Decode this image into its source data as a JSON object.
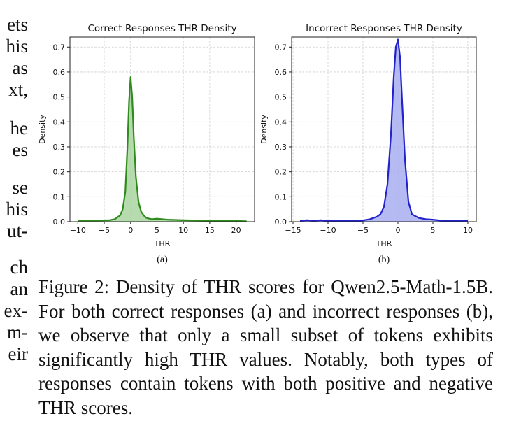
{
  "left_column_fragments": [
    "ets",
    "his",
    "as",
    "xt,",
    "he",
    "es",
    "se",
    "his",
    "ut-",
    "ch",
    "an",
    "ex-",
    "m-",
    "eir"
  ],
  "caption": "Figure 2: Density of THR scores for Qwen2.5-Math-1.5B. For both correct responses (a) and incorrect responses (b), we observe that only a small subset of tokens exhibits significantly high THR values. Notably, both types of responses contain tokens with both positive and negative THR scores.",
  "chart_data": [
    {
      "type": "area",
      "title": "Correct Responses THR Density",
      "xlabel": "THR",
      "ylabel": "Density",
      "sublabel": "(a)",
      "color": "#2e8b1c",
      "fill": "#a8d5a0",
      "xlim": [
        -11.5,
        23.5
      ],
      "ylim": [
        0,
        0.74
      ],
      "xticks": [
        -10,
        -5,
        0,
        5,
        10,
        15,
        20
      ],
      "yticks": [
        0.0,
        0.1,
        0.2,
        0.3,
        0.4,
        0.5,
        0.6,
        0.7
      ],
      "grid": true,
      "x": [
        -10,
        -6,
        -4,
        -3,
        -2,
        -1.5,
        -1,
        -0.6,
        -0.3,
        0,
        0.3,
        0.6,
        1,
        1.5,
        2,
        2.5,
        3,
        4,
        5,
        6,
        7,
        10,
        15,
        20,
        22
      ],
      "y": [
        0.005,
        0.005,
        0.006,
        0.01,
        0.025,
        0.05,
        0.12,
        0.3,
        0.48,
        0.58,
        0.5,
        0.34,
        0.18,
        0.08,
        0.04,
        0.025,
        0.015,
        0.01,
        0.012,
        0.01,
        0.008,
        0.006,
        0.004,
        0.003,
        0.002
      ]
    },
    {
      "type": "area",
      "title": "Incorrect Responses THR Density",
      "xlabel": "THR",
      "ylabel": "Density",
      "sublabel": "(b)",
      "color": "#2222cc",
      "fill": "#a8aef0",
      "xlim": [
        -15.2,
        11.2
      ],
      "ylim": [
        0,
        0.74
      ],
      "xticks": [
        -15,
        -10,
        -5,
        0,
        5,
        10
      ],
      "yticks": [
        0.0,
        0.1,
        0.2,
        0.3,
        0.4,
        0.5,
        0.6,
        0.7
      ],
      "grid": true,
      "x": [
        -14,
        -13,
        -12,
        -11,
        -10,
        -9,
        -8,
        -7,
        -6,
        -5,
        -4,
        -3,
        -2.5,
        -2,
        -1.5,
        -1,
        -0.6,
        -0.3,
        0,
        0.3,
        0.6,
        1,
        1.5,
        2,
        2.5,
        3,
        4,
        5,
        6,
        7,
        8,
        9,
        10
      ],
      "y": [
        0.004,
        0.006,
        0.004,
        0.006,
        0.003,
        0.004,
        0.003,
        0.004,
        0.003,
        0.005,
        0.01,
        0.02,
        0.03,
        0.06,
        0.15,
        0.35,
        0.58,
        0.7,
        0.73,
        0.66,
        0.48,
        0.25,
        0.08,
        0.03,
        0.022,
        0.015,
        0.01,
        0.008,
        0.005,
        0.004,
        0.004,
        0.005,
        0.004
      ]
    }
  ]
}
